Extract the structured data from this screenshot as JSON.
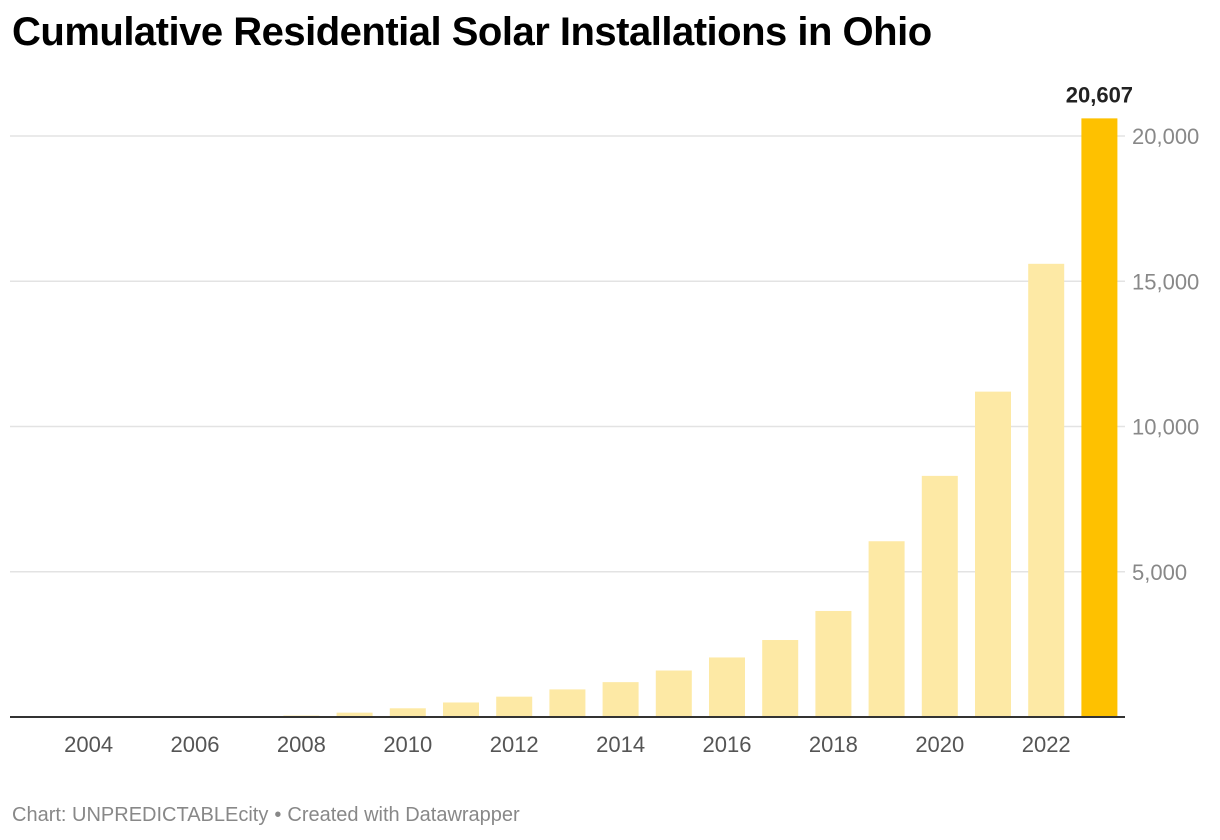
{
  "chart_data": {
    "type": "bar",
    "title": "Cumulative Residential Solar Installations in Ohio",
    "xlabel": "",
    "ylabel": "",
    "categories": [
      "2004",
      "2005",
      "2006",
      "2007",
      "2008",
      "2009",
      "2010",
      "2011",
      "2012",
      "2013",
      "2014",
      "2015",
      "2016",
      "2017",
      "2018",
      "2019",
      "2020",
      "2021",
      "2022",
      "2023"
    ],
    "x_tick_labels": [
      "2004",
      "2006",
      "2008",
      "2010",
      "2012",
      "2014",
      "2016",
      "2018",
      "2020",
      "2022"
    ],
    "values": [
      2,
      5,
      10,
      20,
      50,
      150,
      300,
      500,
      700,
      950,
      1200,
      1600,
      2050,
      2650,
      3650,
      6050,
      8300,
      11200,
      15600,
      20607
    ],
    "ylim": [
      0,
      20000
    ],
    "y_ticks": [
      5000,
      10000,
      15000,
      20000
    ],
    "y_tick_labels": [
      "5,000",
      "10,000",
      "15,000",
      "20,000"
    ],
    "y_axis_side": "right",
    "grid": true,
    "highlight": {
      "category": "2023",
      "label": "20,607"
    },
    "colors": {
      "bar": "#fde9a5",
      "highlight": "#fec100",
      "grid": "#e3e3e3",
      "axis": "#333333",
      "tick_text": "#888888",
      "x_tick_text": "#555555",
      "value_label": "#222222"
    }
  },
  "footer": {
    "source": "Chart: UNPREDICTABLEcity",
    "separator": "•",
    "credit": "Created with Datawrapper"
  }
}
